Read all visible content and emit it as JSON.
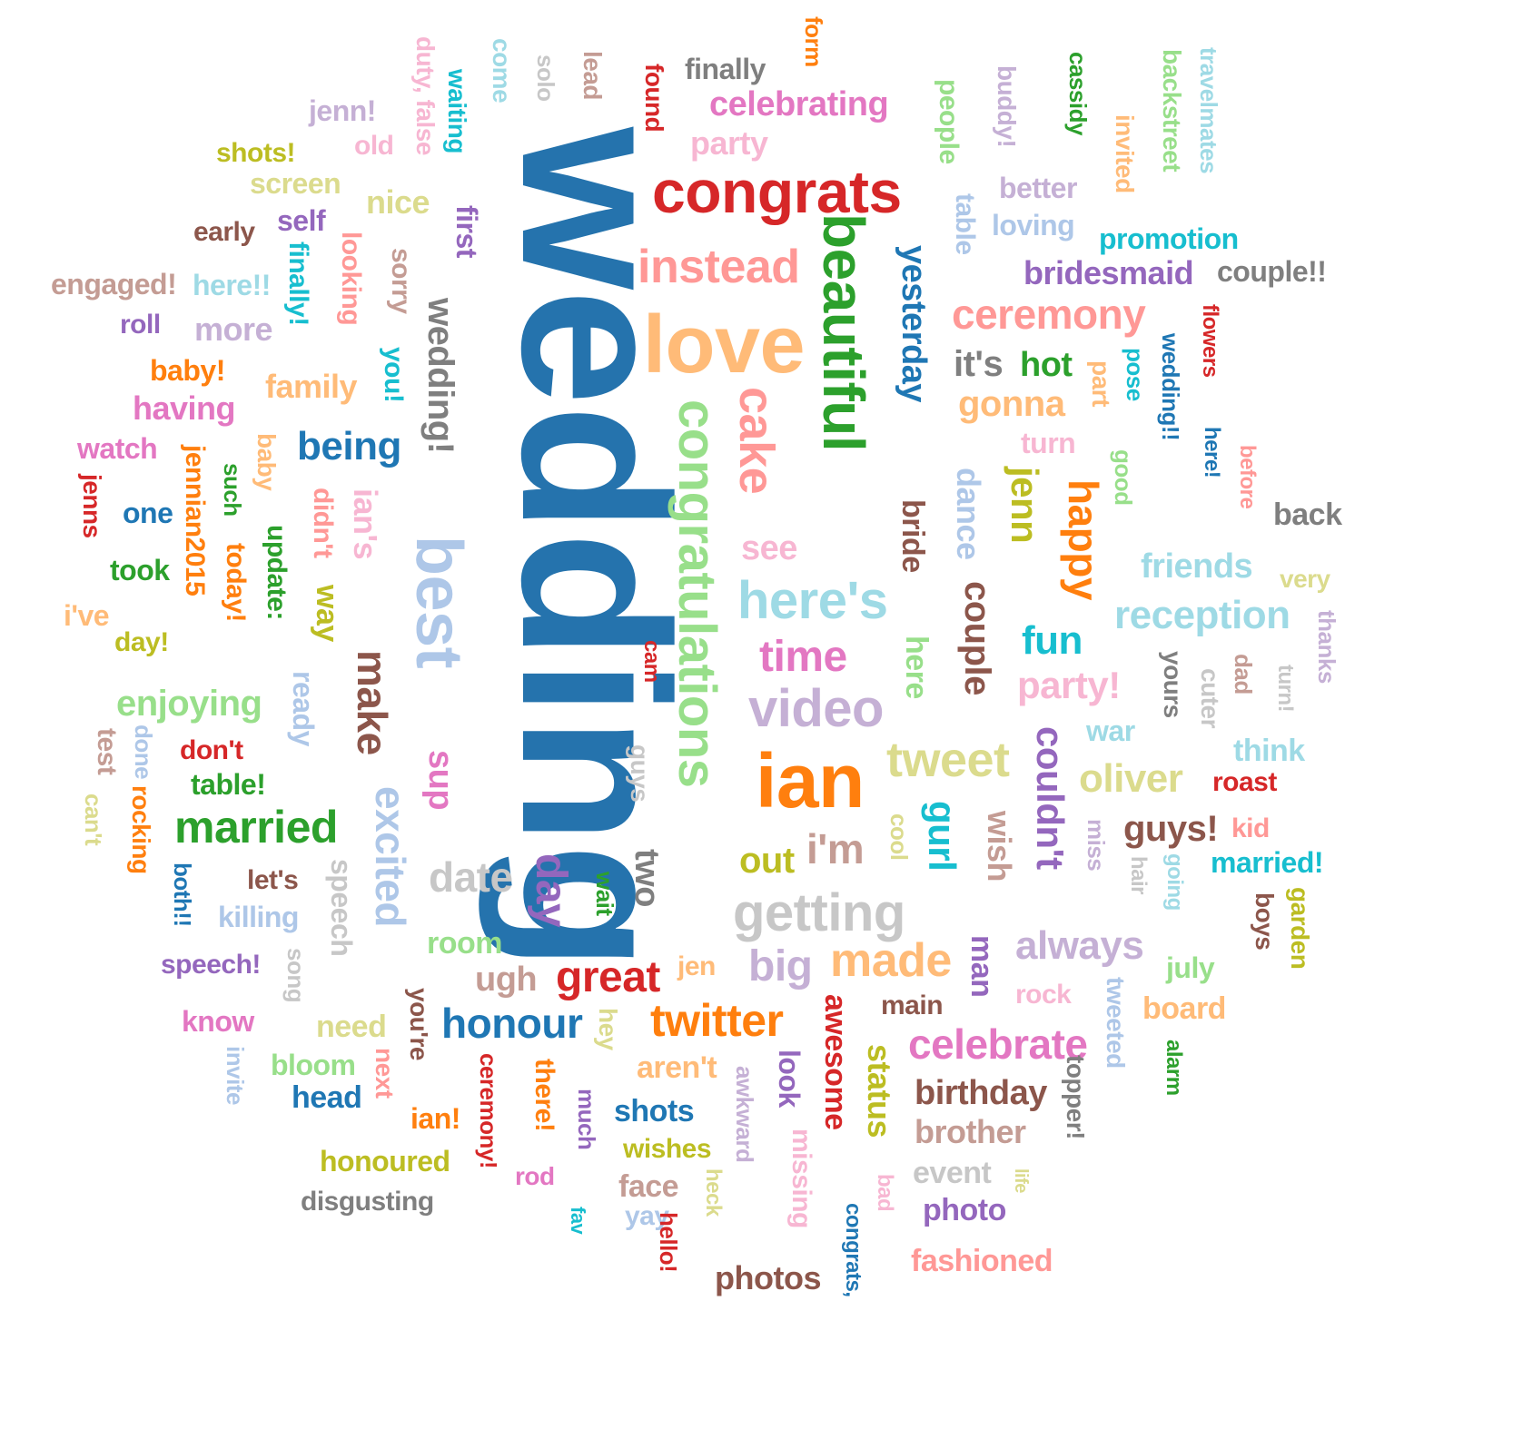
{
  "words": [
    {
      "text": "wedding",
      "color": "#2573ad",
      "vertical": true
    },
    {
      "text": "congrats",
      "color": "#d62728",
      "vertical": false
    },
    {
      "text": "love",
      "color": "#ffbb78",
      "vertical": false
    },
    {
      "text": "beautiful",
      "color": "#2ca02c",
      "vertical": true
    },
    {
      "text": "congratulations",
      "color": "#98df8a",
      "vertical": true
    },
    {
      "text": "best",
      "color": "#aec7e8",
      "vertical": true
    },
    {
      "text": "ian",
      "color": "#ff7f0e",
      "vertical": false
    },
    {
      "text": "instead",
      "color": "#ff9896",
      "vertical": false
    },
    {
      "text": "cake",
      "color": "#ff9896",
      "vertical": true
    },
    {
      "text": "here's",
      "color": "#9edae5",
      "vertical": false
    },
    {
      "text": "video",
      "color": "#c5b0d5",
      "vertical": false
    },
    {
      "text": "day",
      "color": "#9467bd",
      "vertical": true
    },
    {
      "text": "getting",
      "color": "#c7c7c7",
      "vertical": false
    },
    {
      "text": "married",
      "color": "#2ca02c",
      "vertical": false
    },
    {
      "text": "make",
      "color": "#8c564b",
      "vertical": true
    },
    {
      "text": "excited",
      "color": "#aec7e8",
      "vertical": true
    },
    {
      "text": "wedding!",
      "color": "#7f7f7f",
      "vertical": true
    },
    {
      "text": "tweet",
      "color": "#dbdb8d",
      "vertical": false
    },
    {
      "text": "ceremony",
      "color": "#ff9896",
      "vertical": false
    },
    {
      "text": "yesterday",
      "color": "#1f77b4",
      "vertical": true
    },
    {
      "text": "being",
      "color": "#1f77b4",
      "vertical": false
    },
    {
      "text": "time",
      "color": "#e377c2",
      "vertical": false
    },
    {
      "text": "made",
      "color": "#ffbb78",
      "vertical": false
    },
    {
      "text": "great",
      "color": "#d62728",
      "vertical": false
    },
    {
      "text": "twitter",
      "color": "#ff7f0e",
      "vertical": false
    },
    {
      "text": "celebrate",
      "color": "#e377c2",
      "vertical": false
    },
    {
      "text": "reception",
      "color": "#9edae5",
      "vertical": false
    },
    {
      "text": "couple",
      "color": "#8c564b",
      "vertical": true
    },
    {
      "text": "happy",
      "color": "#ff7f0e",
      "vertical": true
    },
    {
      "text": "jenn",
      "color": "#bcbd22",
      "vertical": true
    },
    {
      "text": "date",
      "color": "#c7c7c7",
      "vertical": false
    },
    {
      "text": "honour",
      "color": "#1f77b4",
      "vertical": false
    },
    {
      "text": "always",
      "color": "#c5b0d5",
      "vertical": false
    },
    {
      "text": "couldn't",
      "color": "#9467bd",
      "vertical": true
    },
    {
      "text": "gurl",
      "color": "#17becf",
      "vertical": true
    },
    {
      "text": "oliver",
      "color": "#dbdb8d",
      "vertical": false
    },
    {
      "text": "i'm",
      "color": "#c49c94",
      "vertical": false
    },
    {
      "text": "big",
      "color": "#c5b0d5",
      "vertical": false
    },
    {
      "text": "fun",
      "color": "#17becf",
      "vertical": false
    },
    {
      "text": "party!",
      "color": "#f7b6d2",
      "vertical": false
    },
    {
      "text": "sup",
      "color": "#e377c2",
      "vertical": true
    },
    {
      "text": "ian's",
      "color": "#f7b6d2",
      "vertical": true
    },
    {
      "text": "enjoying",
      "color": "#98df8a",
      "vertical": false
    },
    {
      "text": "bridesmaid",
      "color": "#9467bd",
      "vertical": false
    },
    {
      "text": "promotion",
      "color": "#17becf",
      "vertical": false
    },
    {
      "text": "couple!!",
      "color": "#7f7f7f",
      "vertical": false
    },
    {
      "text": "gonna",
      "color": "#ffbb78",
      "vertical": false
    },
    {
      "text": "dance",
      "color": "#aec7e8",
      "vertical": true
    },
    {
      "text": "bride",
      "color": "#8c564b",
      "vertical": true
    },
    {
      "text": "see",
      "color": "#f7b6d2",
      "vertical": false
    },
    {
      "text": "birthday",
      "color": "#8c564b",
      "vertical": false
    },
    {
      "text": "brother",
      "color": "#c49c94",
      "vertical": false
    },
    {
      "text": "status",
      "color": "#bcbd22",
      "vertical": true
    },
    {
      "text": "awesome",
      "color": "#d62728",
      "vertical": true
    },
    {
      "text": "speech",
      "color": "#c7c7c7",
      "vertical": true
    },
    {
      "text": "ready",
      "color": "#aec7e8",
      "vertical": true
    },
    {
      "text": "wish",
      "color": "#c49c94",
      "vertical": true
    },
    {
      "text": "man",
      "color": "#9467bd",
      "vertical": true
    },
    {
      "text": "here",
      "color": "#98df8a",
      "vertical": true
    },
    {
      "text": "hot",
      "color": "#2ca02c",
      "vertical": false
    },
    {
      "text": "it's",
      "color": "#7f7f7f",
      "vertical": false
    },
    {
      "text": "family",
      "color": "#ffbb78",
      "vertical": false
    },
    {
      "text": "having",
      "color": "#e377c2",
      "vertical": false
    },
    {
      "text": "watch",
      "color": "#e377c2",
      "vertical": false
    },
    {
      "text": "update:",
      "color": "#2ca02c",
      "vertical": true
    },
    {
      "text": "way",
      "color": "#bcbd22",
      "vertical": true
    },
    {
      "text": "didn't",
      "color": "#ff9896",
      "vertical": true
    },
    {
      "text": "looking",
      "color": "#ff9896",
      "vertical": true
    },
    {
      "text": "sorry",
      "color": "#c49c94",
      "vertical": true
    },
    {
      "text": "you!",
      "color": "#17becf",
      "vertical": true
    },
    {
      "text": "finally!",
      "color": "#17becf",
      "vertical": true
    },
    {
      "text": "first",
      "color": "#9467bd",
      "vertical": true
    },
    {
      "text": "duty, false",
      "color": "#f7b6d2",
      "vertical": true
    },
    {
      "text": "waiting",
      "color": "#17becf",
      "vertical": true
    },
    {
      "text": "come",
      "color": "#9edae5",
      "vertical": true
    },
    {
      "text": "solo",
      "color": "#c7c7c7",
      "vertical": true
    },
    {
      "text": "lead",
      "color": "#c49c94",
      "vertical": true
    },
    {
      "text": "found",
      "color": "#d62728",
      "vertical": true
    },
    {
      "text": "finally",
      "color": "#7f7f7f",
      "vertical": false
    },
    {
      "text": "form",
      "color": "#ff7f0e",
      "vertical": true
    },
    {
      "text": "celebrating",
      "color": "#e377c2",
      "vertical": false
    },
    {
      "text": "party",
      "color": "#f7b6d2",
      "vertical": false
    },
    {
      "text": "people",
      "color": "#98df8a",
      "vertical": true
    },
    {
      "text": "buddy!",
      "color": "#c5b0d5",
      "vertical": true
    },
    {
      "text": "cassidy",
      "color": "#2ca02c",
      "vertical": true
    },
    {
      "text": "backstreet",
      "color": "#98df8a",
      "vertical": true
    },
    {
      "text": "travelmates",
      "color": "#9edae5",
      "vertical": true
    },
    {
      "text": "invited",
      "color": "#ffbb78",
      "vertical": true
    },
    {
      "text": "better",
      "color": "#c5b0d5",
      "vertical": false
    },
    {
      "text": "loving",
      "color": "#aec7e8",
      "vertical": false
    },
    {
      "text": "table",
      "color": "#aec7e8",
      "vertical": true
    },
    {
      "text": "jenn!",
      "color": "#c5b0d5",
      "vertical": false
    },
    {
      "text": "old",
      "color": "#f7b6d2",
      "vertical": false
    },
    {
      "text": "shots!",
      "color": "#bcbd22",
      "vertical": false
    },
    {
      "text": "screen",
      "color": "#dbdb8d",
      "vertical": false
    },
    {
      "text": "nice",
      "color": "#dbdb8d",
      "vertical": false
    },
    {
      "text": "early",
      "color": "#8c564b",
      "vertical": false
    },
    {
      "text": "self",
      "color": "#9467bd",
      "vertical": false
    },
    {
      "text": "engaged!",
      "color": "#c49c94",
      "vertical": false
    },
    {
      "text": "here!!",
      "color": "#9edae5",
      "vertical": false
    },
    {
      "text": "roll",
      "color": "#9467bd",
      "vertical": false
    },
    {
      "text": "more",
      "color": "#c5b0d5",
      "vertical": false
    },
    {
      "text": "baby!",
      "color": "#ff7f0e",
      "vertical": false
    },
    {
      "text": "jenns",
      "color": "#d62728",
      "vertical": true
    },
    {
      "text": "one",
      "color": "#1f77b4",
      "vertical": false
    },
    {
      "text": "took",
      "color": "#2ca02c",
      "vertical": false
    },
    {
      "text": "i've",
      "color": "#ffbb78",
      "vertical": false
    },
    {
      "text": "day!",
      "color": "#bcbd22",
      "vertical": false
    },
    {
      "text": "jennian2015",
      "color": "#ff7f0e",
      "vertical": true
    },
    {
      "text": "such",
      "color": "#2ca02c",
      "vertical": true
    },
    {
      "text": "baby",
      "color": "#ffbb78",
      "vertical": true
    },
    {
      "text": "today!",
      "color": "#ff7f0e",
      "vertical": true
    },
    {
      "text": "test",
      "color": "#c49c94",
      "vertical": true
    },
    {
      "text": "done",
      "color": "#aec7e8",
      "vertical": true
    },
    {
      "text": "can't",
      "color": "#dbdb8d",
      "vertical": true
    },
    {
      "text": "rocking",
      "color": "#ff7f0e",
      "vertical": true
    },
    {
      "text": "both!!",
      "color": "#1f77b4",
      "vertical": true
    },
    {
      "text": "don't",
      "color": "#d62728",
      "vertical": false
    },
    {
      "text": "table!",
      "color": "#2ca02c",
      "vertical": false
    },
    {
      "text": "let's",
      "color": "#8c564b",
      "vertical": false
    },
    {
      "text": "killing",
      "color": "#aec7e8",
      "vertical": false
    },
    {
      "text": "speech!",
      "color": "#9467bd",
      "vertical": false
    },
    {
      "text": "song",
      "color": "#c7c7c7",
      "vertical": true
    },
    {
      "text": "know",
      "color": "#e377c2",
      "vertical": false
    },
    {
      "text": "invite",
      "color": "#aec7e8",
      "vertical": true
    },
    {
      "text": "bloom",
      "color": "#98df8a",
      "vertical": false
    },
    {
      "text": "head",
      "color": "#1f77b4",
      "vertical": false
    },
    {
      "text": "need",
      "color": "#dbdb8d",
      "vertical": false
    },
    {
      "text": "next",
      "color": "#ff9896",
      "vertical": true
    },
    {
      "text": "you're",
      "color": "#8c564b",
      "vertical": true
    },
    {
      "text": "honoured",
      "color": "#bcbd22",
      "vertical": false
    },
    {
      "text": "disgusting",
      "color": "#7f7f7f",
      "vertical": false
    },
    {
      "text": "ian!",
      "color": "#ff7f0e",
      "vertical": false
    },
    {
      "text": "ceremony!",
      "color": "#d62728",
      "vertical": true
    },
    {
      "text": "there!",
      "color": "#ff7f0e",
      "vertical": true
    },
    {
      "text": "rod",
      "color": "#e377c2",
      "vertical": false
    },
    {
      "text": "much",
      "color": "#9467bd",
      "vertical": true
    },
    {
      "text": "fav",
      "color": "#17becf",
      "vertical": true
    },
    {
      "text": "ugh",
      "color": "#c49c94",
      "vertical": false
    },
    {
      "text": "room",
      "color": "#98df8a",
      "vertical": false
    },
    {
      "text": "wait",
      "color": "#2ca02c",
      "vertical": true
    },
    {
      "text": "two",
      "color": "#7f7f7f",
      "vertical": true
    },
    {
      "text": "guys",
      "color": "#c7c7c7",
      "vertical": true
    },
    {
      "text": "cam",
      "color": "#d62728",
      "vertical": true
    },
    {
      "text": "jen",
      "color": "#ffbb78",
      "vertical": false
    },
    {
      "text": "hey",
      "color": "#dbdb8d",
      "vertical": true
    },
    {
      "text": "aren't",
      "color": "#ffbb78",
      "vertical": false
    },
    {
      "text": "shots",
      "color": "#1f77b4",
      "vertical": false
    },
    {
      "text": "wishes",
      "color": "#bcbd22",
      "vertical": false
    },
    {
      "text": "face",
      "color": "#c49c94",
      "vertical": false
    },
    {
      "text": "yay",
      "color": "#aec7e8",
      "vertical": false
    },
    {
      "text": "hello!",
      "color": "#d62728",
      "vertical": true
    },
    {
      "text": "heck",
      "color": "#dbdb8d",
      "vertical": true
    },
    {
      "text": "awkward",
      "color": "#c5b0d5",
      "vertical": true
    },
    {
      "text": "look",
      "color": "#9467bd",
      "vertical": true
    },
    {
      "text": "missing",
      "color": "#f7b6d2",
      "vertical": true
    },
    {
      "text": "photos",
      "color": "#8c564b",
      "vertical": false
    },
    {
      "text": "congrats,",
      "color": "#1f77b4",
      "vertical": true
    },
    {
      "text": "out",
      "color": "#bcbd22",
      "vertical": false
    },
    {
      "text": "cool",
      "color": "#dbdb8d",
      "vertical": true
    },
    {
      "text": "main",
      "color": "#8c564b",
      "vertical": false
    },
    {
      "text": "bad",
      "color": "#f7b6d2",
      "vertical": true
    },
    {
      "text": "event",
      "color": "#c7c7c7",
      "vertical": false
    },
    {
      "text": "photo",
      "color": "#9467bd",
      "vertical": false
    },
    {
      "text": "life",
      "color": "#dbdb8d",
      "vertical": true
    },
    {
      "text": "fashioned",
      "color": "#ff9896",
      "vertical": false
    },
    {
      "text": "rock",
      "color": "#f7b6d2",
      "vertical": false
    },
    {
      "text": "tweeted",
      "color": "#aec7e8",
      "vertical": true
    },
    {
      "text": "topper!",
      "color": "#7f7f7f",
      "vertical": true
    },
    {
      "text": "alarm",
      "color": "#2ca02c",
      "vertical": true
    },
    {
      "text": "board",
      "color": "#ffbb78",
      "vertical": false
    },
    {
      "text": "july",
      "color": "#98df8a",
      "vertical": false
    },
    {
      "text": "going",
      "color": "#9edae5",
      "vertical": true
    },
    {
      "text": "hair",
      "color": "#c7c7c7",
      "vertical": true
    },
    {
      "text": "miss",
      "color": "#c5b0d5",
      "vertical": true
    },
    {
      "text": "guys!",
      "color": "#8c564b",
      "vertical": false
    },
    {
      "text": "kid",
      "color": "#ff9896",
      "vertical": false
    },
    {
      "text": "married!",
      "color": "#17becf",
      "vertical": false
    },
    {
      "text": "boys",
      "color": "#8c564b",
      "vertical": true
    },
    {
      "text": "garden",
      "color": "#bcbd22",
      "vertical": true
    },
    {
      "text": "roast",
      "color": "#d62728",
      "vertical": false
    },
    {
      "text": "think",
      "color": "#9edae5",
      "vertical": false
    },
    {
      "text": "war",
      "color": "#9edae5",
      "vertical": false
    },
    {
      "text": "yours",
      "color": "#7f7f7f",
      "vertical": true
    },
    {
      "text": "cuter",
      "color": "#c7c7c7",
      "vertical": true
    },
    {
      "text": "dad",
      "color": "#c49c94",
      "vertical": true
    },
    {
      "text": "turn!",
      "color": "#c7c7c7",
      "vertical": true
    },
    {
      "text": "thanks",
      "color": "#c5b0d5",
      "vertical": true
    },
    {
      "text": "very",
      "color": "#dbdb8d",
      "vertical": false
    },
    {
      "text": "friends",
      "color": "#9edae5",
      "vertical": false
    },
    {
      "text": "back",
      "color": "#7f7f7f",
      "vertical": false
    },
    {
      "text": "before",
      "color": "#ff9896",
      "vertical": true
    },
    {
      "text": "here!",
      "color": "#1f77b4",
      "vertical": true
    },
    {
      "text": "flowers",
      "color": "#d62728",
      "vertical": true
    },
    {
      "text": "wedding!!",
      "color": "#1f77b4",
      "vertical": true
    },
    {
      "text": "pose",
      "color": "#17becf",
      "vertical": true
    },
    {
      "text": "part",
      "color": "#ffbb78",
      "vertical": true
    },
    {
      "text": "turn",
      "color": "#f7b6d2",
      "vertical": false
    },
    {
      "text": "good",
      "color": "#98df8a",
      "vertical": true
    }
  ]
}
